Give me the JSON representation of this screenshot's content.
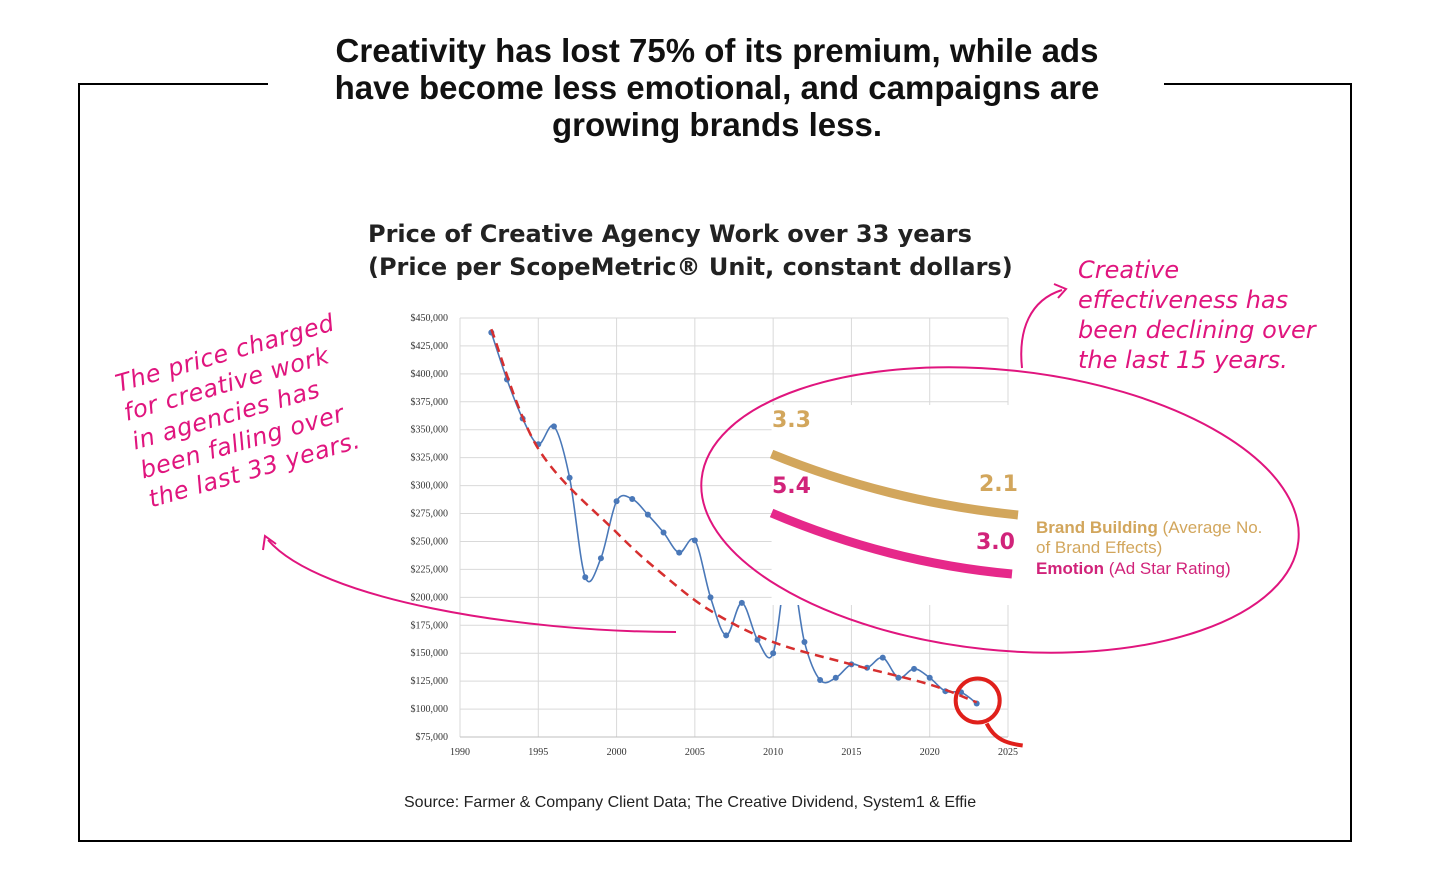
{
  "headline": [
    "Creativity has lost 75% of its premium, while ads",
    "have become less emotional, and campaigns are",
    "growing brands less."
  ],
  "chart_data": {
    "type": "line",
    "title": "Price of Creative Agency Work over 33 years",
    "subtitle": "(Price per ScopeMetric® Unit, constant dollars)",
    "xlim": [
      1990,
      2025
    ],
    "ylim": [
      75000,
      450000
    ],
    "x_ticks": [
      "1990",
      "1995",
      "2000",
      "2005",
      "2010",
      "2015",
      "2020",
      "2025"
    ],
    "y_ticks": [
      "$450,000",
      "$425,000",
      "$400,000",
      "$375,000",
      "$350,000",
      "$325,000",
      "$300,000",
      "$275,000",
      "$250,000",
      "$225,000",
      "$200,000",
      "$175,000",
      "$150,000",
      "$125,000",
      "$100,000",
      "$75,000"
    ],
    "grid": true,
    "series": [
      {
        "x": [
          1992,
          1993,
          1994,
          1995,
          1996,
          1997,
          1998,
          1999,
          2000,
          2001,
          2002,
          2003,
          2004,
          2005,
          2006,
          2007,
          2008,
          2009,
          2010,
          2011,
          2012,
          2013,
          2014,
          2015,
          2016,
          2017,
          2018,
          2019,
          2020,
          2021,
          2022,
          2023
        ],
        "values": [
          437000,
          395000,
          360000,
          337000,
          353000,
          307000,
          218000,
          235000,
          286000,
          288000,
          274000,
          258000,
          240000,
          251000,
          200000,
          166000,
          195000,
          162000,
          150000,
          232000,
          160000,
          126000,
          128000,
          140000,
          137000,
          146000,
          128000,
          136000,
          128000,
          116000,
          115000,
          105000
        ]
      },
      {
        "x": [
          1992,
          1995,
          2000,
          2003,
          2006,
          2010,
          2015,
          2020,
          2023
        ],
        "values": [
          440000,
          333000,
          258000,
          220000,
          188000,
          160000,
          140000,
          122000,
          106000
        ]
      }
    ],
    "inset": {
      "x_range": [
        2009.9,
        2025
      ],
      "brand_building": {
        "start": "3.3",
        "end": "2.1",
        "start_value": 3.3,
        "end_value": 2.1
      },
      "emotion": {
        "start": "5.4",
        "end": "3.0",
        "start_value": 5.4,
        "end_value": 3.0
      }
    }
  },
  "notes": {
    "left": [
      "The price charged",
      "for creative work",
      "in agencies has",
      "been falling over",
      "the last 33 years."
    ],
    "right": [
      "Creative",
      "effectiveness has",
      "been declining over",
      "the last 15 years."
    ]
  },
  "legend": {
    "brand_label": "Brand Building",
    "brand_detail": " (Average No. of Brand Effects)",
    "emotion_label": "Emotion",
    "emotion_detail": " (Ad Star Rating)"
  },
  "source": "Source: Farmer & Company Client Data; The Creative Dividend, System1 & Effie",
  "colors": {
    "price_line": "#4a78b8",
    "trend": "#d62f2f",
    "annotation": "#e0157e",
    "brand": "#d2a65c",
    "emotion": "#e6288a"
  }
}
